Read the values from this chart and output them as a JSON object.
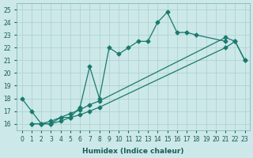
{
  "xlabel": "Humidex (Indice chaleur)",
  "xlim": [
    -0.5,
    23.5
  ],
  "ylim": [
    15.5,
    25.5
  ],
  "xticks": [
    0,
    1,
    2,
    3,
    4,
    5,
    6,
    7,
    8,
    9,
    10,
    11,
    12,
    13,
    14,
    15,
    16,
    17,
    18,
    19,
    20,
    21,
    22,
    23
  ],
  "yticks": [
    16,
    17,
    18,
    19,
    20,
    21,
    22,
    23,
    24,
    25
  ],
  "line_color": "#1a7a6e",
  "bg_color": "#cce8e8",
  "grid_color": "#aacfcf",
  "jagged_x": [
    0,
    1,
    2,
    3,
    4,
    5,
    6,
    7,
    8,
    9,
    10,
    11,
    12,
    13,
    14,
    15,
    16,
    17,
    18,
    21
  ],
  "jagged_y": [
    18.0,
    17.0,
    16.0,
    16.0,
    16.5,
    16.5,
    17.3,
    20.5,
    18.0,
    22.0,
    21.5,
    22.0,
    22.5,
    22.5,
    24.0,
    24.8,
    23.2,
    23.2,
    23.0,
    22.5
  ],
  "straight1_x": [
    1,
    2,
    3,
    4,
    5,
    6,
    7,
    8,
    21,
    22,
    23
  ],
  "straight1_y": [
    16.0,
    16.0,
    16.2,
    16.5,
    16.8,
    17.1,
    17.5,
    17.8,
    22.8,
    22.5,
    21.0
  ],
  "straight2_x": [
    1,
    2,
    3,
    4,
    5,
    6,
    7,
    8,
    21,
    22,
    23
  ],
  "straight2_y": [
    16.0,
    16.0,
    16.0,
    16.2,
    16.5,
    16.7,
    17.0,
    17.3,
    22.0,
    22.5,
    21.0
  ],
  "marker": "D",
  "markersize": 2.5,
  "linewidth": 0.9
}
